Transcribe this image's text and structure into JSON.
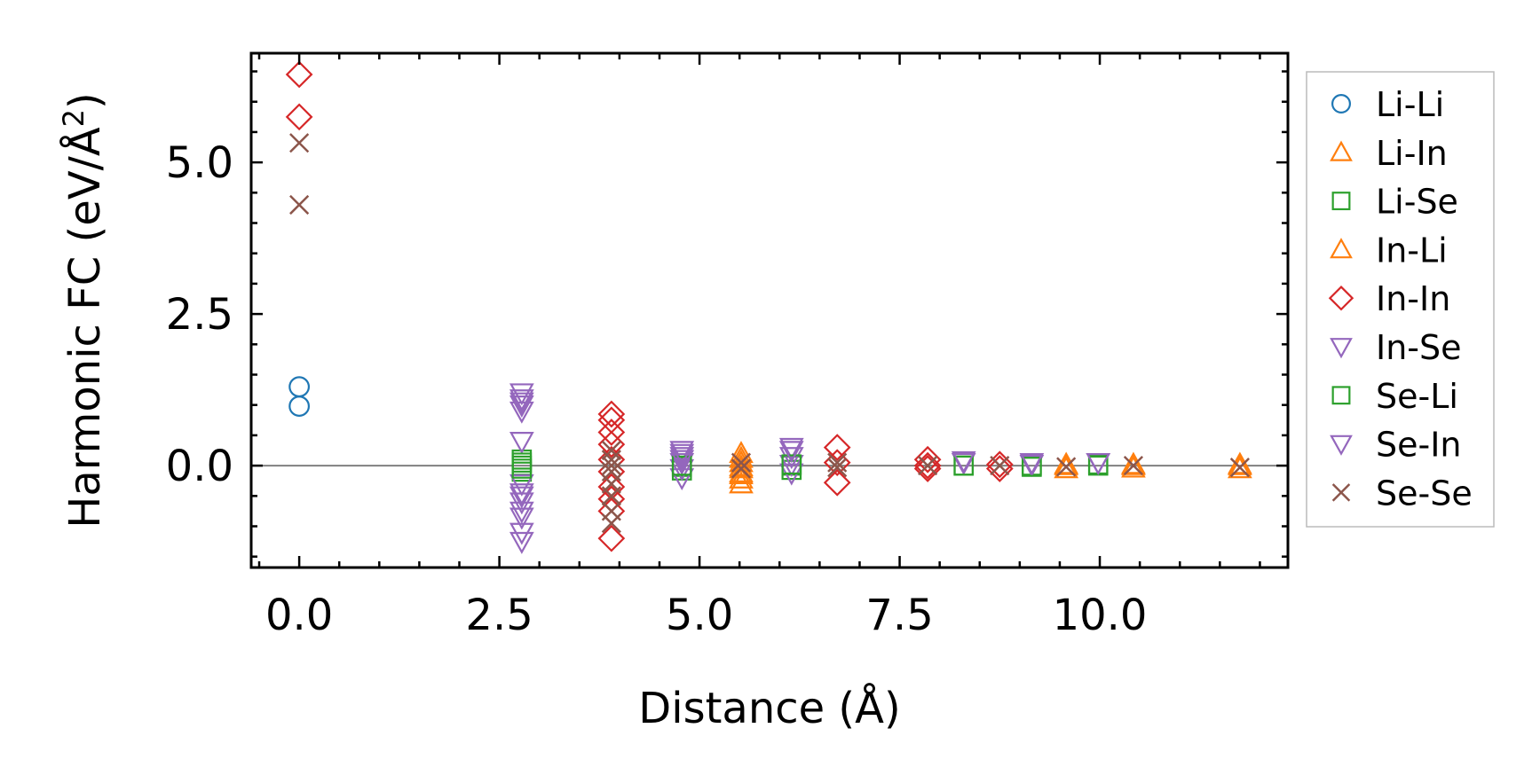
{
  "chart_data": {
    "type": "scatter",
    "title": "",
    "xlabel": "Distance (Å)",
    "ylabel_main": "Harmonic FC (eV/Å",
    "ylabel_sup": "2",
    "ylabel_close": ")",
    "xlim": [
      -0.6,
      12.35
    ],
    "ylim": [
      -1.68,
      6.8
    ],
    "xticks": [
      0.0,
      2.5,
      5.0,
      7.5,
      10.0
    ],
    "xtick_labels": [
      "0.0",
      "2.5",
      "5.0",
      "7.5",
      "10.0"
    ],
    "yticks": [
      0.0,
      2.5,
      5.0
    ],
    "ytick_labels": [
      "0.0",
      "2.5",
      "5.0"
    ],
    "x_minor_step": 0.5,
    "y_minor_step": 0.5,
    "zero_line": true,
    "grid": false,
    "legend_position": "right, outside plot",
    "series": [
      {
        "name": "Li-Li",
        "marker": "circle",
        "color": "#1f77b4",
        "x": [
          0,
          0
        ],
        "y": [
          1.3,
          0.98
        ]
      },
      {
        "name": "Li-In",
        "marker": "triangle-up",
        "color": "#ff7f0e",
        "x": [
          5.52,
          5.52,
          5.52,
          5.52,
          5.52,
          5.52,
          9.58,
          9.58,
          10.42,
          10.42,
          11.75,
          11.75
        ],
        "y": [
          0.2,
          0.05,
          -0.05,
          -0.15,
          -0.22,
          -0.3,
          0.02,
          -0.05,
          0.02,
          -0.04,
          0.02,
          -0.05
        ]
      },
      {
        "name": "Li-Se",
        "marker": "square",
        "color": "#2ca02c",
        "x": [
          2.78,
          2.78,
          2.78,
          4.78,
          4.78,
          6.15,
          6.15,
          8.3,
          9.15,
          9.98
        ],
        "y": [
          0.1,
          0.0,
          -0.1,
          -0.02,
          -0.08,
          0.0,
          -0.07,
          0.0,
          0.0,
          0.02
        ]
      },
      {
        "name": "In-Li",
        "marker": "triangle-up",
        "color": "#ff7f0e",
        "x": [
          5.52,
          5.52,
          5.52,
          9.58,
          10.42,
          11.75
        ],
        "y": [
          0.12,
          -0.02,
          -0.12,
          0.0,
          0.0,
          0.0
        ]
      },
      {
        "name": "In-In",
        "marker": "diamond",
        "color": "#d62728",
        "x": [
          0,
          0,
          3.9,
          3.9,
          3.9,
          3.9,
          3.9,
          3.9,
          3.9,
          3.9,
          3.9,
          3.9,
          6.72,
          6.72,
          6.72,
          7.85,
          7.85,
          7.85,
          8.75,
          8.75
        ],
        "y": [
          6.45,
          5.75,
          0.85,
          0.75,
          0.55,
          0.35,
          0.1,
          -0.1,
          -0.35,
          -0.55,
          -0.75,
          -1.2,
          0.3,
          0.05,
          -0.28,
          0.1,
          0.0,
          -0.05,
          0.02,
          -0.05
        ]
      },
      {
        "name": "In-Se",
        "marker": "triangle-down",
        "color": "#9467bd",
        "x": [
          2.78,
          2.78,
          2.78,
          2.78,
          2.78,
          2.78,
          2.78,
          2.78,
          2.78,
          2.78,
          2.78,
          4.78,
          4.78,
          4.78,
          4.78,
          4.78,
          6.15,
          6.15,
          6.15,
          6.15,
          8.3,
          9.15,
          9.98
        ],
        "y": [
          1.2,
          1.1,
          1.0,
          0.9,
          0.4,
          -0.3,
          -0.45,
          -0.6,
          -0.85,
          -1.1,
          -1.25,
          0.25,
          0.15,
          0.05,
          -0.05,
          -0.2,
          0.3,
          0.15,
          0.02,
          -0.12,
          0.05,
          0.02,
          0.05
        ]
      },
      {
        "name": "Se-Li",
        "marker": "square",
        "color": "#2ca02c",
        "x": [
          2.78,
          2.78,
          4.78,
          6.15,
          8.3,
          9.15,
          9.98
        ],
        "y": [
          0.05,
          -0.05,
          0.0,
          0.02,
          0.0,
          -0.02,
          0.0
        ]
      },
      {
        "name": "Se-In",
        "marker": "triangle-down",
        "color": "#9467bd",
        "x": [
          2.78,
          2.78,
          2.78,
          4.78,
          4.78,
          6.15,
          8.3,
          9.15,
          9.98
        ],
        "y": [
          1.05,
          -0.5,
          -0.75,
          0.2,
          0.1,
          0.25,
          0.08,
          0.05,
          0.05
        ]
      },
      {
        "name": "Se-Se",
        "marker": "x",
        "color": "#8c564b",
        "x": [
          0,
          0,
          3.9,
          3.9,
          3.9,
          3.9,
          3.9,
          3.9,
          3.9,
          3.9,
          5.52,
          5.52,
          6.72,
          6.72,
          7.85,
          8.75,
          9.58,
          10.42,
          11.75
        ],
        "y": [
          5.32,
          4.3,
          0.25,
          0.1,
          0.0,
          -0.1,
          -0.3,
          -0.5,
          -0.75,
          -0.95,
          0.05,
          -0.05,
          0.05,
          -0.03,
          0.0,
          0.0,
          -0.02,
          0.0,
          -0.03
        ]
      }
    ]
  }
}
